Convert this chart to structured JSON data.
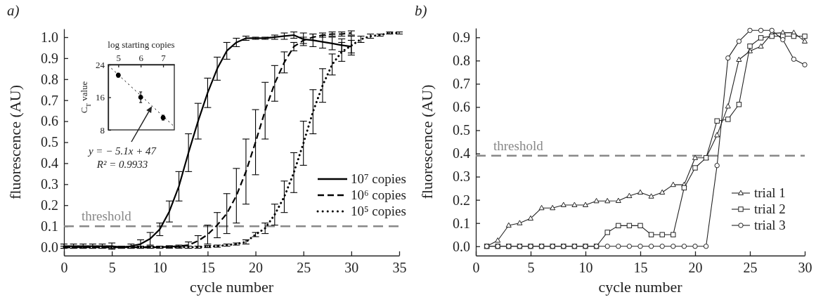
{
  "chart_data": [
    {
      "type": "line",
      "title": "a)",
      "xlabel": "cycle number",
      "ylabel": "fluorescence (AU)",
      "xlim": [
        0,
        35
      ],
      "ylim": [
        -0.04,
        1.04
      ],
      "xticks": [
        0,
        5,
        10,
        15,
        20,
        25,
        30,
        35
      ],
      "yticks": [
        {
          "value": 0,
          "label": "0.0"
        },
        {
          "value": 0.1,
          "label": "0.1"
        },
        {
          "value": 0.2,
          "label": "0.2"
        },
        {
          "value": 0.3,
          "label": "0.3"
        },
        {
          "value": 0.4,
          "label": "0.4"
        },
        {
          "value": 0.5,
          "label": "0.5"
        },
        {
          "value": 0.6,
          "label": "0.6"
        },
        {
          "value": 0.7,
          "label": "0.7"
        },
        {
          "value": 0.8,
          "label": "0.8"
        },
        {
          "value": 0.9,
          "label": "0.9"
        },
        {
          "value": 1,
          "label": "1.0"
        }
      ],
      "legend": "bottom right",
      "ref_lines": [
        {
          "axis": "y",
          "value": 0.1,
          "label": "threshold",
          "color": "#888888",
          "line_style": "dashed"
        }
      ],
      "series": [
        {
          "name": "10⁷ copies",
          "color": "#000000",
          "line_style": "solid",
          "x": [
            0,
            1,
            2,
            3,
            4,
            5,
            6,
            7,
            8,
            9,
            10,
            11,
            12,
            13,
            14,
            15,
            16,
            17,
            18,
            19,
            20,
            21,
            22,
            23,
            24,
            25,
            26,
            27,
            28,
            29,
            30
          ],
          "values": [
            0.005,
            0.005,
            0.005,
            0.005,
            0.005,
            0.005,
            0,
            0.005,
            0.015,
            0.04,
            0.085,
            0.17,
            0.29,
            0.45,
            0.6,
            0.735,
            0.85,
            0.935,
            0.975,
            0.995,
            0.995,
            0.995,
            1.0,
            1.005,
            1.01,
            0.99,
            0.985,
            0.978,
            0.97,
            0.962,
            0.955
          ],
          "errors": [
            0.01,
            0.01,
            0.01,
            0.01,
            0.01,
            0.015,
            0.005,
            0.01,
            0.02,
            0.03,
            0.03,
            0.05,
            0.07,
            0.09,
            0.085,
            0.07,
            0.055,
            0.04,
            0.02,
            0.01,
            0.005,
            0.005,
            0.01,
            0.015,
            0.015,
            0.03,
            0.03,
            0.03,
            0.03,
            0.03,
            0.03
          ]
        },
        {
          "name": "10⁶ copies",
          "color": "#000000",
          "line_style": "dashed",
          "x": [
            0,
            1,
            2,
            3,
            4,
            5,
            6,
            7,
            8,
            9,
            10,
            11,
            12,
            13,
            14,
            15,
            16,
            17,
            18,
            19,
            20,
            21,
            22,
            23,
            24,
            25,
            26,
            27,
            28,
            29,
            30
          ],
          "values": [
            0,
            0,
            0,
            0,
            0,
            0,
            0,
            0,
            0,
            0,
            0,
            0.002,
            0.005,
            0.01,
            0.03,
            0.06,
            0.105,
            0.16,
            0.245,
            0.36,
            0.5,
            0.65,
            0.78,
            0.88,
            0.955,
            0.985,
            1.0,
            1.01,
            1.015,
            1.015,
            1.02
          ],
          "errors": [
            0.005,
            0.005,
            0.005,
            0.005,
            0.005,
            0.005,
            0.005,
            0.005,
            0.005,
            0.005,
            0.005,
            0.005,
            0.005,
            0.015,
            0.025,
            0.045,
            0.06,
            0.095,
            0.13,
            0.155,
            0.155,
            0.135,
            0.085,
            0.05,
            0.02,
            0.015,
            0.015,
            0.01,
            0.01,
            0.01,
            0.01
          ]
        },
        {
          "name": "10⁵ copies",
          "color": "#000000",
          "line_style": "dotted",
          "x": [
            0,
            1,
            2,
            3,
            4,
            5,
            6,
            7,
            8,
            9,
            10,
            11,
            12,
            13,
            14,
            15,
            16,
            17,
            18,
            19,
            20,
            21,
            22,
            23,
            24,
            25,
            26,
            27,
            28,
            29,
            30,
            31,
            32,
            33,
            34,
            35
          ],
          "values": [
            0,
            0,
            0,
            0,
            0,
            0,
            0,
            0,
            0,
            0,
            0,
            0,
            0,
            0,
            0,
            0.003,
            0.005,
            0.01,
            0.015,
            0.025,
            0.06,
            0.09,
            0.155,
            0.24,
            0.355,
            0.495,
            0.645,
            0.77,
            0.87,
            0.93,
            0.96,
            0.99,
            1.005,
            1.01,
            1.02,
            1.02
          ],
          "errors": [
            0.005,
            0.005,
            0.005,
            0.005,
            0.005,
            0.005,
            0.005,
            0.005,
            0.005,
            0.005,
            0.005,
            0.005,
            0.005,
            0.005,
            0.005,
            0.005,
            0.005,
            0.005,
            0.005,
            0.01,
            0.01,
            0.025,
            0.05,
            0.075,
            0.095,
            0.105,
            0.105,
            0.08,
            0.05,
            0.045,
            0.045,
            0.015,
            0.01,
            0.005,
            0.005,
            0.005
          ]
        }
      ]
    },
    {
      "type": "scatter",
      "ylabel": "C$_{T}$ value",
      "xlabel": "log starting copies",
      "xlim": [
        4.55,
        7.5
      ],
      "xticks": [
        5,
        6,
        7
      ],
      "ylim": [
        8,
        24
      ],
      "yticks": [
        8,
        16,
        24
      ],
      "annotations": [
        {
          "text": "y = − 5.1x + 47",
          "x": 6.5,
          "y": 13.8
        },
        "R² = 0.9933"
      ],
      "series": [
        {
          "color": "#000000",
          "marker": "circle",
          "x": [
            5,
            6,
            7
          ],
          "values": [
            21.4,
            16,
            11
          ],
          "errors": [
            0.5,
            1.3,
            0.6
          ]
        },
        {
          "type": "line",
          "color": "#000000",
          "line_style": "dotted",
          "x": [
            4.55,
            7.5
          ],
          "values": [
            23.8,
            8.8
          ]
        }
      ]
    },
    {
      "type": "line",
      "title": "b)",
      "xlabel": "cycle number",
      "ylabel": "fluorescence (AU)",
      "xlim": [
        0,
        30
      ],
      "ylim": [
        -0.04,
        0.94
      ],
      "xticks": [
        0,
        5,
        10,
        15,
        20,
        25,
        30
      ],
      "yticks": [
        {
          "value": 0,
          "label": "0.0"
        },
        {
          "value": 0.1,
          "label": "0.1"
        },
        {
          "value": 0.2,
          "label": "0.2"
        },
        {
          "value": 0.3,
          "label": "0.3"
        },
        {
          "value": 0.4,
          "label": "0.4"
        },
        {
          "value": 0.5,
          "label": "0.5"
        },
        {
          "value": 0.6,
          "label": "0.6"
        },
        {
          "value": 0.7,
          "label": "0.7"
        },
        {
          "value": 0.8,
          "label": "0.8"
        },
        {
          "value": 0.9,
          "label": "0.9"
        }
      ],
      "legend": "bottom right",
      "x": [
        1,
        2,
        3,
        4,
        5,
        6,
        7,
        8,
        9,
        10,
        11,
        12,
        13,
        14,
        15,
        16,
        17,
        18,
        19,
        20,
        21,
        22,
        23,
        24,
        25,
        26,
        27,
        28,
        29,
        30
      ],
      "ref_lines": [
        {
          "axis": "y",
          "value": 0.39,
          "label": "threshold",
          "color": "#888888",
          "line_style": "dashed"
        }
      ],
      "series": [
        {
          "name": "trial 1",
          "color": "#222222",
          "marker": "triangle",
          "values": [
            0,
            0.025,
            0.09,
            0.1,
            0.12,
            0.165,
            0.165,
            0.178,
            0.178,
            0.178,
            0.195,
            0.195,
            0.196,
            0.217,
            0.232,
            0.215,
            0.232,
            0.265,
            0.265,
            0.381,
            0.381,
            0.479,
            0.603,
            0.804,
            0.841,
            0.861,
            0.917,
            0.92,
            0.92,
            0.883
          ]
        },
        {
          "name": "trial 2",
          "color": "#222222",
          "marker": "square",
          "values": [
            0,
            0,
            0,
            0,
            0,
            0,
            0,
            0,
            0,
            0,
            0,
            0.06,
            0.089,
            0.089,
            0.089,
            0.05,
            0.05,
            0.05,
            0.252,
            0.338,
            0.381,
            0.54,
            0.547,
            0.611,
            0.862,
            0.898,
            0.905,
            0.905,
            0.905,
            0.905
          ]
        },
        {
          "name": "trial 3",
          "color": "#222222",
          "marker": "circle",
          "values": [
            0,
            0,
            0,
            0,
            0,
            0,
            0,
            0,
            0,
            0,
            0,
            0,
            0,
            0,
            0,
            0,
            0,
            0,
            0,
            0,
            0,
            0.348,
            0.811,
            0.883,
            0.93,
            0.93,
            0.93,
            0.89,
            0.806,
            0.782
          ]
        }
      ]
    }
  ]
}
